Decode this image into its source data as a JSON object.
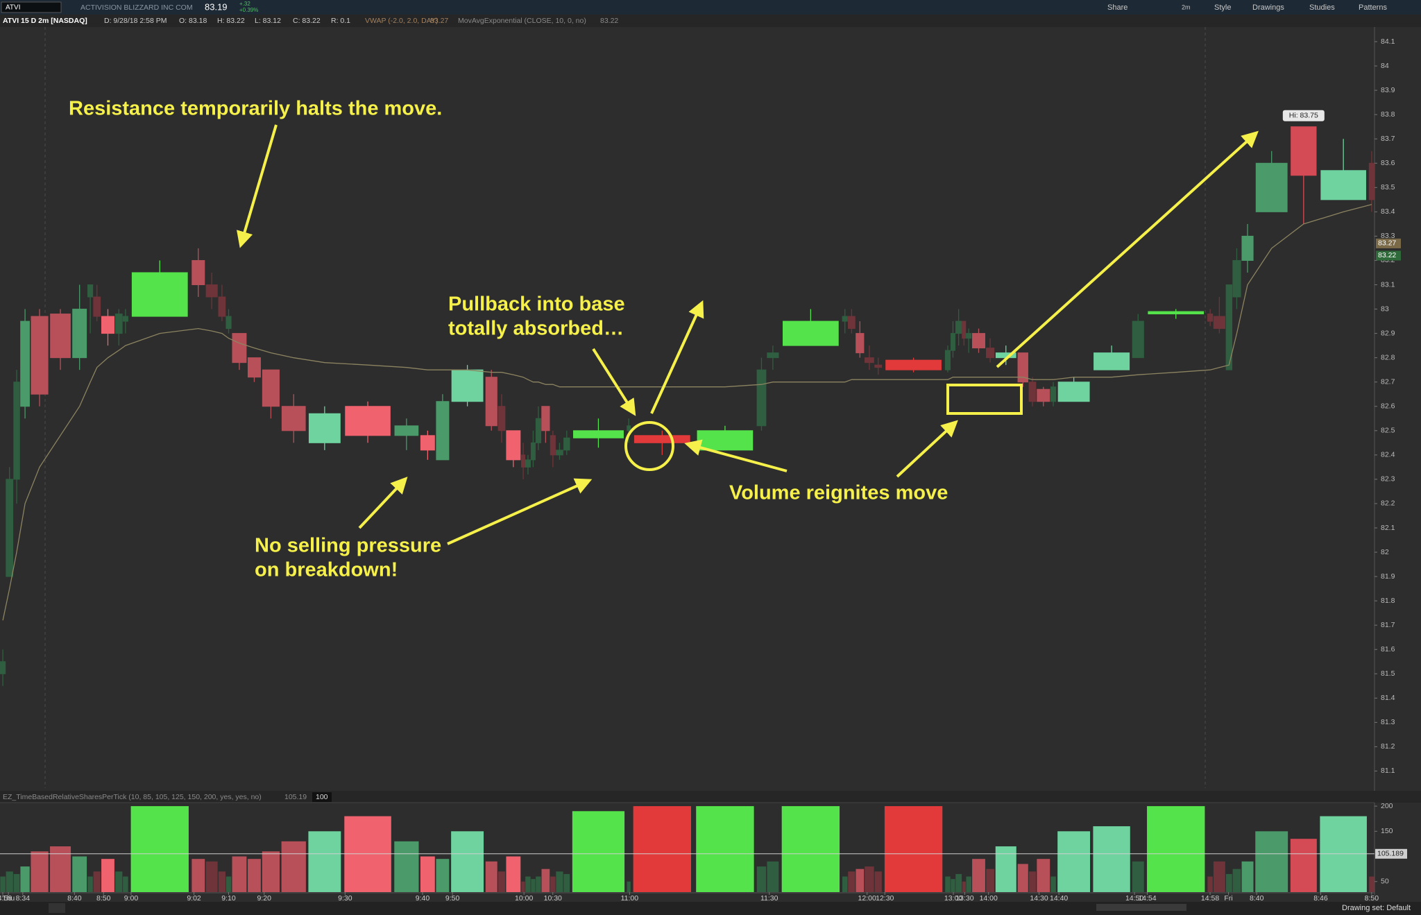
{
  "toolbar": {
    "symbol": "ATVI",
    "company": "ACTIVISION BLIZZARD INC COM",
    "last": "83.19",
    "change": "+.32",
    "change_pct": "+0.39%",
    "buttons": [
      "Share",
      "2m",
      "Style",
      "Drawings",
      "Studies",
      "Patterns"
    ]
  },
  "info_bar": [
    "ATVI 15 D 2m [NASDAQ]",
    "D: 9/28/18 2:58 PM",
    "O: 83.18",
    "H: 83.22",
    "L: 83.12",
    "C: 83.22",
    "R: 0.1",
    "VWAP (-2.0, 2.0, DAY)",
    "83.27",
    "MovAvgExponential (CLOSE, 10, 0, no)",
    "83.22"
  ],
  "chart_data": [
    {
      "type": "candlestick",
      "open": [
        81.55,
        81.9,
        82.3,
        82.6,
        82.97,
        82.98,
        82.8,
        83.1,
        83.05,
        82.97,
        82.9,
        82.95,
        82.97,
        83.2,
        83.1,
        83.05,
        82.97,
        82.9,
        82.8,
        82.75,
        82.6,
        82.45,
        82.6,
        82.48,
        82.48,
        82.38,
        82.62,
        82.72,
        82.6,
        82.5,
        82.4,
        82.35,
        82.38,
        82.45,
        82.6,
        82.48,
        82.4,
        82.42,
        82.47,
        82.5,
        82.48,
        82.42,
        82.52,
        82.8,
        82.85,
        82.95,
        82.97,
        82.9,
        82.8,
        82.77,
        82.79,
        82.75,
        82.83,
        82.9,
        82.95,
        82.88,
        82.9,
        82.84,
        82.8,
        82.82,
        82.7,
        82.67,
        82.62,
        82.62,
        82.75,
        82.8,
        82.98,
        82.98,
        82.97,
        82.75,
        83.05,
        83.2,
        83.4,
        83.75,
        83.45,
        83.6
      ],
      "high": [
        81.6,
        82.35,
        82.75,
        83.0,
        83.0,
        83.0,
        83.1,
        83.1,
        83.1,
        83.0,
        83.0,
        83.0,
        83.2,
        83.25,
        83.15,
        83.1,
        83.0,
        82.9,
        82.8,
        82.75,
        82.65,
        82.6,
        82.62,
        82.55,
        82.5,
        82.65,
        82.77,
        82.75,
        82.65,
        82.5,
        82.45,
        82.4,
        82.5,
        82.6,
        82.6,
        82.5,
        82.45,
        82.5,
        82.55,
        82.55,
        82.5,
        82.52,
        82.8,
        82.85,
        83.0,
        83.0,
        83.0,
        82.95,
        82.85,
        82.8,
        82.8,
        82.85,
        82.95,
        83.0,
        82.95,
        82.92,
        82.92,
        82.88,
        82.85,
        82.82,
        82.72,
        82.68,
        82.7,
        82.72,
        82.85,
        82.98,
        83.0,
        83.0,
        83.05,
        83.1,
        83.25,
        83.35,
        83.65,
        83.75,
        83.7,
        83.65
      ],
      "low": [
        81.45,
        81.9,
        82.2,
        82.55,
        82.6,
        82.75,
        82.75,
        82.9,
        82.95,
        82.85,
        82.85,
        82.9,
        82.97,
        83.05,
        83.0,
        82.95,
        82.9,
        82.75,
        82.7,
        82.55,
        82.45,
        82.42,
        82.45,
        82.42,
        82.38,
        82.38,
        82.6,
        82.5,
        82.45,
        82.35,
        82.3,
        82.32,
        82.35,
        82.42,
        82.45,
        82.35,
        82.38,
        82.4,
        82.43,
        82.45,
        82.4,
        82.42,
        82.5,
        82.75,
        82.85,
        82.9,
        82.9,
        82.8,
        82.75,
        82.73,
        82.74,
        82.74,
        82.8,
        82.85,
        82.85,
        82.82,
        82.82,
        82.78,
        82.77,
        82.68,
        82.6,
        82.6,
        82.6,
        82.62,
        82.75,
        82.8,
        82.96,
        82.93,
        82.9,
        82.75,
        83.0,
        83.15,
        83.4,
        83.35,
        83.45,
        83.4
      ],
      "close": [
        81.5,
        82.3,
        82.7,
        82.95,
        82.65,
        82.8,
        83.0,
        83.05,
        82.97,
        82.9,
        82.98,
        82.97,
        83.15,
        83.1,
        83.05,
        82.97,
        82.92,
        82.78,
        82.72,
        82.6,
        82.5,
        82.57,
        82.48,
        82.52,
        82.42,
        82.62,
        82.75,
        82.52,
        82.5,
        82.38,
        82.35,
        82.38,
        82.45,
        82.55,
        82.5,
        82.4,
        82.42,
        82.47,
        82.5,
        82.52,
        82.45,
        82.5,
        82.75,
        82.82,
        82.95,
        82.97,
        82.92,
        82.82,
        82.78,
        82.76,
        82.75,
        82.83,
        82.9,
        82.95,
        82.88,
        82.9,
        82.84,
        82.8,
        82.82,
        82.7,
        82.62,
        82.62,
        82.68,
        82.7,
        82.82,
        82.95,
        82.99,
        82.95,
        82.92,
        83.1,
        83.2,
        83.3,
        83.6,
        83.55,
        83.57,
        83.45
      ],
      "vwap": [
        81.72,
        81.85,
        82.0,
        82.2,
        82.35,
        82.48,
        82.6,
        82.7,
        82.76,
        82.8,
        82.83,
        82.85,
        82.9,
        82.92,
        82.91,
        82.9,
        82.88,
        82.86,
        82.84,
        82.82,
        82.8,
        82.78,
        82.77,
        82.76,
        82.75,
        82.75,
        82.75,
        82.74,
        82.74,
        82.73,
        82.72,
        82.71,
        82.7,
        82.7,
        82.69,
        82.69,
        82.68,
        82.68,
        82.68,
        82.68,
        82.68,
        82.68,
        82.69,
        82.7,
        82.7,
        82.7,
        82.71,
        82.71,
        82.71,
        82.71,
        82.71,
        82.71,
        82.72,
        82.72,
        82.72,
        82.72,
        82.72,
        82.72,
        82.72,
        82.72,
        82.71,
        82.71,
        82.71,
        82.72,
        82.72,
        82.73,
        82.74,
        82.75,
        82.76,
        82.77,
        82.9,
        83.1,
        83.25,
        83.35,
        83.4,
        83.43
      ],
      "vwap_color": "#8c8460",
      "colors": [
        "#2f5f40",
        "#2f5f40",
        "#2f5f40",
        "#4a9a6a",
        "#b8505a",
        "#b8505a",
        "#4a9a6a",
        "#2f5f40",
        "#6e3439",
        "#f0626e",
        "#2f5f40",
        "#2f5f40",
        "#55e34b",
        "#b8505a",
        "#6e3439",
        "#6e3439",
        "#2f5f40",
        "#b8505a",
        "#b8505a",
        "#b8505a",
        "#b8505a",
        "#6fd3a0",
        "#f0626e",
        "#4a9a6a",
        "#f0626e",
        "#4a9a6a",
        "#6fd3a0",
        "#b8505a",
        "#6e3439",
        "#f0626e",
        "#6e3439",
        "#2f5f40",
        "#2f5f40",
        "#2f5f40",
        "#b8505a",
        "#6e3439",
        "#2f5f40",
        "#2f5f40",
        "#55e34b",
        "#2f5f40",
        "#e23a3a",
        "#55e34b",
        "#2f5f40",
        "#2f5f40",
        "#55e34b",
        "#2f5f40",
        "#6e3439",
        "#b8505a",
        "#6e3439",
        "#6e3439",
        "#e23a3a",
        "#2f5f40",
        "#2f5f40",
        "#2f5f40",
        "#6e3439",
        "#2f5f40",
        "#b8505a",
        "#6e3439",
        "#6fd3a0",
        "#b8505a",
        "#6e3439",
        "#b8505a",
        "#2f5f40",
        "#6fd3a0",
        "#6fd3a0",
        "#2f5f40",
        "#55e34b",
        "#6e3439",
        "#6e3439",
        "#2f5f40",
        "#2f5f40",
        "#4a9a6a",
        "#4a9a6a",
        "#d44a55",
        "#6fd3a0",
        "#6e3439"
      ],
      "ylim": [
        81.03,
        84.16
      ],
      "yticks": [
        81.1,
        81.2,
        81.3,
        81.4,
        81.5,
        81.6,
        81.7,
        81.8,
        81.9,
        82,
        82.1,
        82.2,
        82.3,
        82.4,
        82.5,
        82.6,
        82.7,
        82.8,
        82.9,
        83,
        83.1,
        83.2,
        83.3,
        83.4,
        83.5,
        83.6,
        83.7,
        83.8,
        83.9,
        84,
        84.1
      ],
      "axis_markers": [
        {
          "value": 83.27,
          "color": "#7a6a48"
        },
        {
          "value": 83.22,
          "color": "#2f6b3a"
        }
      ],
      "high_label": {
        "value": 83.75,
        "label": "Hi: 83.75"
      }
    },
    {
      "type": "bar",
      "title": "EZ_TimeBasedRelativeSharesPerTick (10, 85, 105, 125, 150, 200, yes, yes, no)",
      "status": [
        "105.19",
        "100"
      ],
      "categories": [
        "14:58",
        "Thu",
        null,
        "8:34",
        null,
        null,
        "8:40",
        null,
        null,
        "8:50",
        null,
        null,
        "9:00",
        "9:02",
        null,
        null,
        "9:10",
        null,
        null,
        "9:20",
        null,
        null,
        "9:30",
        null,
        "9:40",
        null,
        "9:50",
        null,
        null,
        null,
        "10:00",
        null,
        null,
        null,
        null,
        "10:30",
        null,
        null,
        null,
        "11:00",
        null,
        null,
        null,
        "11:30",
        null,
        null,
        null,
        null,
        "12:00",
        null,
        "12:30",
        null,
        "13:00",
        null,
        "13:30",
        null,
        null,
        "14:00",
        null,
        null,
        null,
        "14:30",
        null,
        "14:40",
        null,
        "14:50",
        "14:54",
        "14:58",
        null,
        "Fri",
        null,
        null,
        "8:40",
        null,
        "8:46",
        "8:50"
      ],
      "values": [
        60,
        70,
        65,
        80,
        110,
        120,
        100,
        60,
        70,
        95,
        70,
        60,
        200,
        95,
        90,
        70,
        60,
        100,
        95,
        110,
        130,
        150,
        180,
        130,
        100,
        95,
        150,
        90,
        70,
        100,
        50,
        60,
        55,
        60,
        75,
        60,
        70,
        65,
        190,
        50,
        200,
        200,
        80,
        90,
        200,
        60,
        70,
        75,
        80,
        70,
        200,
        60,
        55,
        65,
        50,
        60,
        95,
        75,
        120,
        85,
        70,
        95,
        60,
        150,
        160,
        90,
        200,
        60,
        90,
        65,
        75,
        90,
        150,
        135,
        180,
        60
      ],
      "ylim": [
        29,
        207
      ],
      "yticks": [
        50,
        150,
        200
      ],
      "reference": 105.189
    }
  ],
  "annotations": [
    "Resistance temporarily halts the move.",
    "Pullback into base",
    "totally absorbed…",
    "Volume reignites move",
    "No selling pressure",
    "on breakdown!"
  ],
  "footer": "Drawing set: Default"
}
